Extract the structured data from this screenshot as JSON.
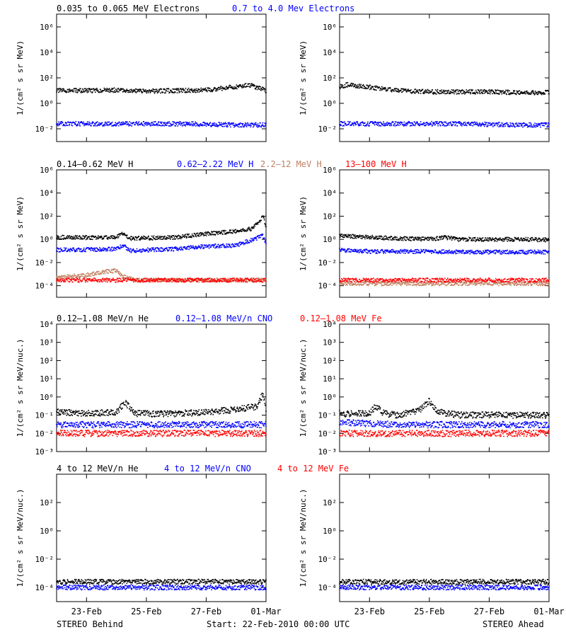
{
  "footer": {
    "left": "STEREO Behind",
    "center": "Start: 22-Feb-2010 00:00 UTC",
    "right": "STEREO Ahead"
  },
  "colors": {
    "black": "#000000",
    "blue": "#0000ff",
    "tan": "#c08060",
    "red": "#ff0000"
  },
  "chart_data": [
    {
      "id": "electrons",
      "type": "scatter",
      "yscale": "log",
      "ylabel": "1/(cm² s sr MeV)",
      "ylim_exp": [
        -3,
        7
      ],
      "ytick_exps": [
        -2,
        0,
        2,
        4,
        6
      ],
      "legend": [
        {
          "text": "0.035 to 0.065 MeV Electrons",
          "color": "#000000"
        },
        {
          "text": "0.7 to 4.0 Mev Electrons",
          "color": "#0000ff"
        }
      ],
      "behind": [
        {
          "color": "#000000",
          "x": [
            0,
            1,
            2,
            3,
            4,
            5,
            6,
            6.4,
            7
          ],
          "y": [
            10,
            10,
            11,
            9,
            10,
            11,
            20,
            30,
            10
          ]
        },
        {
          "color": "#0000ff",
          "x": [
            0,
            2,
            4,
            6,
            7
          ],
          "y": [
            0.025,
            0.025,
            0.025,
            0.02,
            0.02
          ]
        }
      ],
      "ahead": [
        {
          "color": "#000000",
          "x": [
            0,
            0.3,
            0.6,
            1,
            2,
            3,
            4,
            5,
            6,
            7
          ],
          "y": [
            20,
            30,
            22,
            18,
            10,
            8,
            8,
            8,
            7,
            7
          ]
        },
        {
          "color": "#0000ff",
          "x": [
            0,
            2,
            4,
            6,
            7
          ],
          "y": [
            0.025,
            0.025,
            0.025,
            0.02,
            0.02
          ]
        }
      ]
    },
    {
      "id": "protons",
      "type": "scatter",
      "yscale": "log",
      "ylabel": "1/(cm² s sr MeV)",
      "ylim_exp": [
        -5,
        6
      ],
      "ytick_exps": [
        -4,
        -2,
        0,
        2,
        4,
        6
      ],
      "legend": [
        {
          "text": "0.14–0.62 MeV H",
          "color": "#000000"
        },
        {
          "text": "0.62–2.22 MeV H",
          "color": "#0000ff"
        },
        {
          "text": "2.2–12 MeV H",
          "color": "#c08060"
        },
        {
          "text": "13–100 MeV H",
          "color": "#ff0000"
        }
      ],
      "behind": [
        {
          "color": "#000000",
          "x": [
            0,
            1,
            2,
            2.2,
            2.5,
            3,
            4,
            5,
            6,
            6.5,
            6.9,
            7
          ],
          "y": [
            1.5,
            1.4,
            1.5,
            3,
            1.2,
            1.3,
            1.5,
            3,
            5,
            8,
            80,
            15
          ]
        },
        {
          "color": "#0000ff",
          "x": [
            0,
            1,
            2,
            2.2,
            2.5,
            3,
            4,
            5,
            6,
            6.9,
            7
          ],
          "y": [
            0.12,
            0.13,
            0.15,
            0.3,
            0.1,
            0.12,
            0.15,
            0.25,
            0.3,
            2,
            0.4
          ]
        },
        {
          "color": "#c08060",
          "x": [
            0,
            1,
            1.5,
            2,
            2.2,
            2.6,
            3,
            4,
            5,
            6,
            7
          ],
          "y": [
            0.0005,
            0.0008,
            0.0015,
            0.002,
            0.0006,
            0.0003,
            0.0003,
            0.0003,
            0.0003,
            0.0003,
            0.0003
          ]
        },
        {
          "color": "#ff0000",
          "x": [
            0,
            2,
            4,
            6,
            7
          ],
          "y": [
            0.0003,
            0.0003,
            0.0003,
            0.0003,
            0.0003
          ]
        }
      ],
      "ahead": [
        {
          "color": "#000000",
          "x": [
            0,
            1,
            2,
            3,
            3.5,
            4,
            5,
            6,
            7
          ],
          "y": [
            2,
            1.5,
            1.2,
            1,
            1.5,
            1,
            1,
            1,
            0.9
          ]
        },
        {
          "color": "#0000ff",
          "x": [
            0,
            1,
            2,
            3,
            4,
            5,
            6,
            7
          ],
          "y": [
            0.12,
            0.09,
            0.09,
            0.09,
            0.08,
            0.08,
            0.08,
            0.08
          ]
        },
        {
          "color": "#c08060",
          "x": [
            0,
            2,
            4,
            6,
            7
          ],
          "y": [
            0.00015,
            0.00015,
            0.00015,
            0.00015,
            0.00015
          ]
        },
        {
          "color": "#ff0000",
          "x": [
            0,
            2,
            4,
            6,
            7
          ],
          "y": [
            0.0003,
            0.0003,
            0.0003,
            0.0003,
            0.0003
          ]
        }
      ]
    },
    {
      "id": "ions-low",
      "type": "scatter",
      "yscale": "log",
      "ylabel": "1/(cm² s sr MeV/nuc.)",
      "ylim_exp": [
        -3,
        4
      ],
      "ytick_exps": [
        -3,
        -2,
        -1,
        0,
        1,
        2,
        3,
        4
      ],
      "legend": [
        {
          "text": "0.12–1.08 MeV/n He",
          "color": "#000000"
        },
        {
          "text": "0.12–1.08 MeV/n CNO",
          "color": "#0000ff"
        },
        {
          "text": "0.12–1.08 MeV Fe",
          "color": "#ff0000"
        }
      ],
      "behind": [
        {
          "color": "#000000",
          "x": [
            0,
            1,
            2,
            2.3,
            2.6,
            3,
            4,
            5,
            6,
            6.7,
            6.9,
            7
          ],
          "y": [
            0.15,
            0.12,
            0.15,
            0.5,
            0.12,
            0.12,
            0.12,
            0.15,
            0.2,
            0.3,
            1.5,
            0.2
          ]
        },
        {
          "color": "#0000ff",
          "x": [
            0,
            2,
            4,
            6,
            7
          ],
          "y": [
            0.03,
            0.03,
            0.03,
            0.03,
            0.03
          ]
        },
        {
          "color": "#ff0000",
          "x": [
            0,
            2,
            4,
            6,
            7
          ],
          "y": [
            0.01,
            0.01,
            0.01,
            0.01,
            0.01
          ]
        }
      ],
      "ahead": [
        {
          "color": "#000000",
          "x": [
            0,
            1,
            1.2,
            1.5,
            2,
            2.7,
            3,
            3.3,
            4,
            5,
            6,
            7
          ],
          "y": [
            0.12,
            0.12,
            0.3,
            0.12,
            0.1,
            0.2,
            0.6,
            0.15,
            0.1,
            0.1,
            0.1,
            0.1
          ]
        },
        {
          "color": "#0000ff",
          "x": [
            0,
            2,
            4,
            6,
            7
          ],
          "y": [
            0.04,
            0.03,
            0.03,
            0.03,
            0.03
          ]
        },
        {
          "color": "#ff0000",
          "x": [
            0,
            2,
            4,
            6,
            7
          ],
          "y": [
            0.01,
            0.01,
            0.01,
            0.01,
            0.01
          ]
        }
      ]
    },
    {
      "id": "ions-high",
      "type": "scatter",
      "yscale": "log",
      "ylabel": "1/(cm² s sr MeV/nuc.)",
      "ylim_exp": [
        -5,
        4
      ],
      "ytick_exps": [
        -4,
        -2,
        0,
        2
      ],
      "legend": [
        {
          "text": "4 to 12 MeV/n He",
          "color": "#000000"
        },
        {
          "text": "4 to 12 MeV/n CNO",
          "color": "#0000ff"
        },
        {
          "text": "4 to 12 MeV Fe",
          "color": "#ff0000"
        }
      ],
      "behind": [
        {
          "color": "#000000",
          "x": [
            0,
            2,
            4,
            6,
            7
          ],
          "y": [
            0.00025,
            0.00025,
            0.00025,
            0.00025,
            0.00025
          ]
        },
        {
          "color": "#0000ff",
          "x": [
            0,
            2,
            4,
            6,
            7
          ],
          "y": [
            0.0001,
            0.0001,
            0.0001,
            0.0001,
            0.0001
          ]
        }
      ],
      "ahead": [
        {
          "color": "#000000",
          "x": [
            0,
            2,
            4,
            6,
            7
          ],
          "y": [
            0.00025,
            0.00025,
            0.00025,
            0.00025,
            0.00025
          ]
        },
        {
          "color": "#0000ff",
          "x": [
            0,
            2,
            4,
            6,
            7
          ],
          "y": [
            0.0001,
            0.0001,
            0.0001,
            0.0001,
            0.0001
          ]
        }
      ]
    }
  ],
  "x_axis": {
    "start": "22-Feb-2010 00:00",
    "ticks": [
      {
        "label": "23-Feb",
        "day": 1
      },
      {
        "label": "25-Feb",
        "day": 3
      },
      {
        "label": "27-Feb",
        "day": 5
      },
      {
        "label": "01-Mar",
        "day": 7
      }
    ],
    "range_days": [
      0,
      7
    ]
  }
}
